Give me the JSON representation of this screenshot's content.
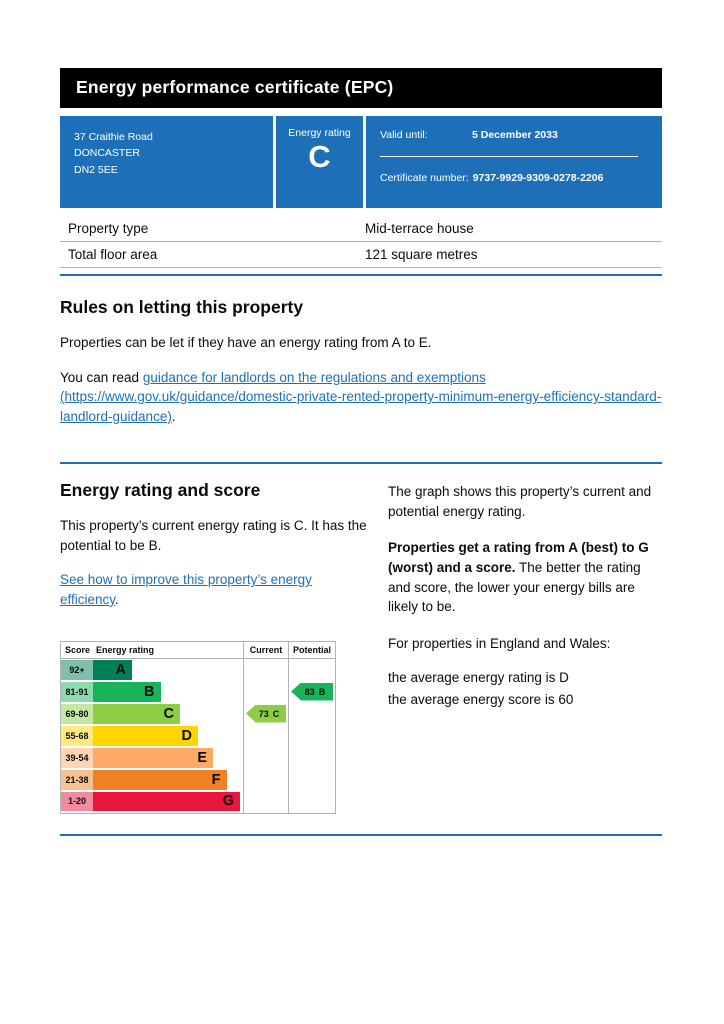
{
  "page": {
    "title": "Energy performance certificate (EPC)"
  },
  "colors": {
    "brand_blue": "#1d70b8",
    "header_black": "#000000",
    "rule_blue": "#1d70b8"
  },
  "summary_box": {
    "address_lines": [
      "37 Craithie Road",
      "DONCASTER",
      "DN2 5EE"
    ],
    "energy_rating_label": "Energy rating",
    "energy_rating_value": "C",
    "valid_until_label": "Valid until:",
    "valid_until_value": "5 December 2033",
    "certificate_number_label": "Certificate number:",
    "certificate_number_value": "9737-9929-9309-0278-2206"
  },
  "property_details": {
    "rows": [
      {
        "label": "Property type",
        "value": "Mid-terrace house"
      },
      {
        "label": "Total floor area",
        "value": "121 square metres"
      }
    ]
  },
  "rules_section": {
    "heading": "Rules on letting this property",
    "paragraph1": "Properties can be let if they have an energy rating from A to E.",
    "paragraph2_prefix": "You can read ",
    "link_text": "guidance for landlords on the regulations and exemptions (https://www.gov.uk/guidance/domestic-private-rented-property-minimum-energy-efficiency-standard-landlord-guidance)",
    "paragraph2_suffix": "."
  },
  "rating_section": {
    "heading": "Energy rating and score",
    "paragraph1": "This property’s current energy rating is C. It has the potential to be B.",
    "improve_link": "See how to improve this property’s energy efficiency",
    "improve_suffix": ".",
    "right": {
      "paragraph1": "The graph shows this property’s current and potential energy rating.",
      "paragraph2_bold": "Properties get a rating from A (best) to G (worst) and a score.",
      "paragraph2_rest": " The better the rating and score, the lower your energy bills are likely to be.",
      "paragraph3": "For properties in England and Wales:",
      "average_rating_line": "the average energy rating is D",
      "average_score_line": "the average energy score is 60"
    }
  },
  "chart": {
    "type": "epc-bands",
    "header": {
      "score": "Score",
      "rating": "Energy rating",
      "current": "Current",
      "potential": "Potential"
    },
    "bands": [
      {
        "score": "92+",
        "letter": "A",
        "color": "#008054",
        "tint": "#80c0aa",
        "width": "26%"
      },
      {
        "score": "81-91",
        "letter": "B",
        "color": "#19b459",
        "tint": "#8cdaac",
        "width": "45%"
      },
      {
        "score": "69-80",
        "letter": "C",
        "color": "#8dce46",
        "tint": "#c6e7a3",
        "width": "58%"
      },
      {
        "score": "55-68",
        "letter": "D",
        "color": "#ffd500",
        "tint": "#ffea80",
        "width": "70%"
      },
      {
        "score": "39-54",
        "letter": "E",
        "color": "#fcaa65",
        "tint": "#fed5b2",
        "width": "80%"
      },
      {
        "score": "21-38",
        "letter": "F",
        "color": "#ef8023",
        "tint": "#f7c091",
        "width": "89%"
      },
      {
        "score": "1-20",
        "letter": "G",
        "color": "#e9153b",
        "tint": "#f48a9d",
        "width": "98%"
      }
    ],
    "current": {
      "score": "73",
      "letter": "C",
      "band": "C",
      "color": "#8dce46"
    },
    "potential": {
      "score": "83",
      "letter": "B",
      "band": "B",
      "color": "#19b459"
    }
  }
}
